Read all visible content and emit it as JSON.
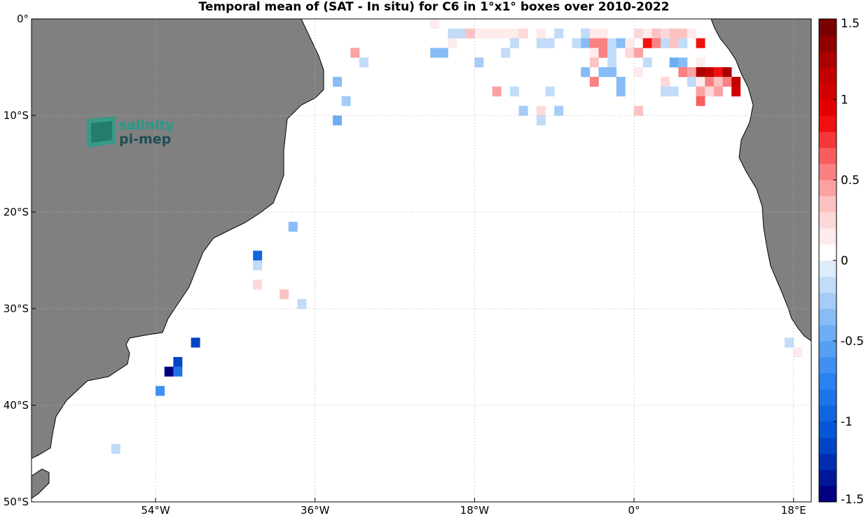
{
  "title": "Temporal mean of (SAT - In situ) for C6 in 1°x1° boxes over 2010-2022",
  "logo": {
    "line1": "salinity",
    "line2": "pi-mep"
  },
  "colors": {
    "land": "#808080",
    "coast": "#000000",
    "grid": "#b4b4b4"
  },
  "chart_data": {
    "type": "heatmap",
    "title": "Temporal mean of (SAT - In situ) for C6 in 1°x1° boxes over 2010-2022",
    "lon_range": [
      -68,
      20
    ],
    "lat_range": [
      -50,
      0
    ],
    "lon_ticks": [
      {
        "value": -54,
        "label": "54°W"
      },
      {
        "value": -36,
        "label": "36°W"
      },
      {
        "value": -18,
        "label": "18°W"
      },
      {
        "value": 0,
        "label": "0°"
      },
      {
        "value": 18,
        "label": "18°E"
      }
    ],
    "lat_ticks": [
      {
        "value": 0,
        "label": "0°"
      },
      {
        "value": -10,
        "label": "10°S"
      },
      {
        "value": -20,
        "label": "20°S"
      },
      {
        "value": -30,
        "label": "30°S"
      },
      {
        "value": -40,
        "label": "40°S"
      },
      {
        "value": -50,
        "label": "50°S"
      }
    ],
    "colorbar": {
      "range": [
        -1.5,
        1.5
      ],
      "levels": 30,
      "ticks": [
        {
          "value": 1.5,
          "label": "1.5"
        },
        {
          "value": 1.0,
          "label": "1"
        },
        {
          "value": 0.5,
          "label": "0.5"
        },
        {
          "value": 0.0,
          "label": "0"
        },
        {
          "value": -0.5,
          "label": "-0.5"
        },
        {
          "value": -1.0,
          "label": "-1"
        },
        {
          "value": -1.5,
          "label": "-1.5"
        }
      ]
    },
    "grid": true,
    "cells": [
      {
        "lon": -23,
        "lat": 0,
        "value": 0.1
      },
      {
        "lon": -21,
        "lat": -1,
        "value": -0.1
      },
      {
        "lon": -20,
        "lat": -1,
        "value": -0.2
      },
      {
        "lon": -19,
        "lat": -1,
        "value": 0.3
      },
      {
        "lon": -18,
        "lat": -1,
        "value": 0.15
      },
      {
        "lon": -17,
        "lat": -1,
        "value": 0.15
      },
      {
        "lon": -16,
        "lat": -1,
        "value": 0.15
      },
      {
        "lon": -15,
        "lat": -1,
        "value": 0.1
      },
      {
        "lon": -14,
        "lat": -1,
        "value": 0.15
      },
      {
        "lon": -13,
        "lat": -1,
        "value": 0.2
      },
      {
        "lon": -11,
        "lat": -1,
        "value": 0.1
      },
      {
        "lon": -9,
        "lat": -1,
        "value": -0.1
      },
      {
        "lon": -6,
        "lat": -1,
        "value": -0.1
      },
      {
        "lon": -5,
        "lat": -1,
        "value": 0.1
      },
      {
        "lon": -4,
        "lat": -1,
        "value": 0.1
      },
      {
        "lon": 0,
        "lat": -1,
        "value": 0.25
      },
      {
        "lon": 1,
        "lat": -1,
        "value": 0.15
      },
      {
        "lon": 2,
        "lat": -1,
        "value": 0.35
      },
      {
        "lon": 3,
        "lat": -1,
        "value": 0.2
      },
      {
        "lon": 4,
        "lat": -1,
        "value": 0.35
      },
      {
        "lon": 5,
        "lat": -1,
        "value": 0.3
      },
      {
        "lon": 6,
        "lat": -1,
        "value": 0.15
      },
      {
        "lon": -21,
        "lat": -2,
        "value": 0.1
      },
      {
        "lon": -14,
        "lat": -2,
        "value": -0.1
      },
      {
        "lon": -11,
        "lat": -2,
        "value": -0.1
      },
      {
        "lon": -10,
        "lat": -2,
        "value": -0.1
      },
      {
        "lon": -7,
        "lat": -2,
        "value": -0.1
      },
      {
        "lon": -6,
        "lat": -2,
        "value": -0.3
      },
      {
        "lon": -5,
        "lat": -2,
        "value": 0.5
      },
      {
        "lon": -4,
        "lat": -2,
        "value": 0.5
      },
      {
        "lon": -3,
        "lat": -2,
        "value": -0.15
      },
      {
        "lon": -2,
        "lat": -2,
        "value": -0.3
      },
      {
        "lon": -1,
        "lat": -2,
        "value": 0.15
      },
      {
        "lon": 1,
        "lat": -2,
        "value": 0.8
      },
      {
        "lon": 2,
        "lat": -2,
        "value": 0.5
      },
      {
        "lon": 3,
        "lat": -2,
        "value": -0.2
      },
      {
        "lon": 4,
        "lat": -2,
        "value": 0.3
      },
      {
        "lon": 5,
        "lat": -2,
        "value": -0.15
      },
      {
        "lon": 7,
        "lat": -2,
        "value": 0.9
      },
      {
        "lon": -32,
        "lat": -3,
        "value": 0.4
      },
      {
        "lon": -23,
        "lat": -3,
        "value": -0.3
      },
      {
        "lon": -22,
        "lat": -3,
        "value": -0.3
      },
      {
        "lon": -15,
        "lat": -3,
        "value": -0.15
      },
      {
        "lon": -5,
        "lat": -3,
        "value": 0.15
      },
      {
        "lon": -4,
        "lat": -3,
        "value": 0.5
      },
      {
        "lon": -3,
        "lat": -3,
        "value": -0.2
      },
      {
        "lon": -1,
        "lat": -3,
        "value": 0.2
      },
      {
        "lon": 0,
        "lat": -3,
        "value": 0.45
      },
      {
        "lon": -31,
        "lat": -4,
        "value": -0.1
      },
      {
        "lon": -18,
        "lat": -4,
        "value": -0.25
      },
      {
        "lon": -5,
        "lat": -4,
        "value": 0.3
      },
      {
        "lon": -3,
        "lat": -4,
        "value": -0.2
      },
      {
        "lon": 1,
        "lat": -4,
        "value": -0.1
      },
      {
        "lon": 4,
        "lat": -4,
        "value": -0.5
      },
      {
        "lon": 5,
        "lat": -4,
        "value": -0.3
      },
      {
        "lon": 7,
        "lat": -4,
        "value": 0.15
      },
      {
        "lon": -6,
        "lat": -5,
        "value": -0.3
      },
      {
        "lon": -4,
        "lat": -5,
        "value": -0.3
      },
      {
        "lon": -3,
        "lat": -5,
        "value": -0.3
      },
      {
        "lon": 0,
        "lat": -5,
        "value": 0.15
      },
      {
        "lon": 5,
        "lat": -5,
        "value": 0.5
      },
      {
        "lon": 6,
        "lat": -5,
        "value": 0.45
      },
      {
        "lon": 7,
        "lat": -5,
        "value": 1.2
      },
      {
        "lon": 8,
        "lat": -5,
        "value": 1.1
      },
      {
        "lon": 9,
        "lat": -5,
        "value": 0.9
      },
      {
        "lon": 10,
        "lat": -5,
        "value": 1.3
      },
      {
        "lon": -34,
        "lat": -6,
        "value": -0.4
      },
      {
        "lon": -5,
        "lat": -6,
        "value": 0.5
      },
      {
        "lon": -2,
        "lat": -6,
        "value": -0.3
      },
      {
        "lon": 3,
        "lat": -6,
        "value": 0.25
      },
      {
        "lon": 6,
        "lat": -6,
        "value": -0.1
      },
      {
        "lon": 7,
        "lat": -6,
        "value": 0.15
      },
      {
        "lon": 8,
        "lat": -6,
        "value": 0.5
      },
      {
        "lon": 9,
        "lat": -6,
        "value": 0.35
      },
      {
        "lon": 10,
        "lat": -6,
        "value": 0.5
      },
      {
        "lon": 11,
        "lat": -6,
        "value": 1.1
      },
      {
        "lon": -16,
        "lat": -7,
        "value": 0.4
      },
      {
        "lon": -14,
        "lat": -7,
        "value": -0.15
      },
      {
        "lon": -10,
        "lat": -7,
        "value": -0.15
      },
      {
        "lon": -2,
        "lat": -7,
        "value": -0.3
      },
      {
        "lon": 3,
        "lat": -7,
        "value": -0.2
      },
      {
        "lon": 4,
        "lat": -7,
        "value": -0.15
      },
      {
        "lon": 7,
        "lat": -7,
        "value": 0.4
      },
      {
        "lon": 8,
        "lat": -7,
        "value": 0.25
      },
      {
        "lon": 9,
        "lat": -7,
        "value": 0.4
      },
      {
        "lon": 11,
        "lat": -7,
        "value": 1.0
      },
      {
        "lon": -33,
        "lat": -8,
        "value": -0.25
      },
      {
        "lon": 7,
        "lat": -8,
        "value": 0.6
      },
      {
        "lon": -13,
        "lat": -9,
        "value": -0.25
      },
      {
        "lon": -11,
        "lat": -9,
        "value": 0.2
      },
      {
        "lon": -9,
        "lat": -9,
        "value": -0.25
      },
      {
        "lon": 0,
        "lat": -9,
        "value": 0.35
      },
      {
        "lon": -34,
        "lat": -10,
        "value": -0.5
      },
      {
        "lon": -11,
        "lat": -10,
        "value": -0.1
      },
      {
        "lon": -39,
        "lat": -21,
        "value": -0.35
      },
      {
        "lon": -43,
        "lat": -24,
        "value": -1.0
      },
      {
        "lon": -43,
        "lat": -25,
        "value": -0.1
      },
      {
        "lon": -43,
        "lat": -27,
        "value": 0.2
      },
      {
        "lon": -40,
        "lat": -28,
        "value": 0.35
      },
      {
        "lon": -38,
        "lat": -29,
        "value": -0.15
      },
      {
        "lon": -50,
        "lat": -33,
        "value": -1.2
      },
      {
        "lon": -52,
        "lat": -35,
        "value": -1.15
      },
      {
        "lon": -53,
        "lat": -36,
        "value": -1.5
      },
      {
        "lon": -52,
        "lat": -36,
        "value": -0.85
      },
      {
        "lon": -54,
        "lat": -38,
        "value": -0.7
      },
      {
        "lon": -59,
        "lat": -44,
        "value": -0.1
      },
      {
        "lon": 17,
        "lat": -33,
        "value": -0.1
      },
      {
        "lon": 18,
        "lat": -34,
        "value": 0.15
      }
    ]
  }
}
